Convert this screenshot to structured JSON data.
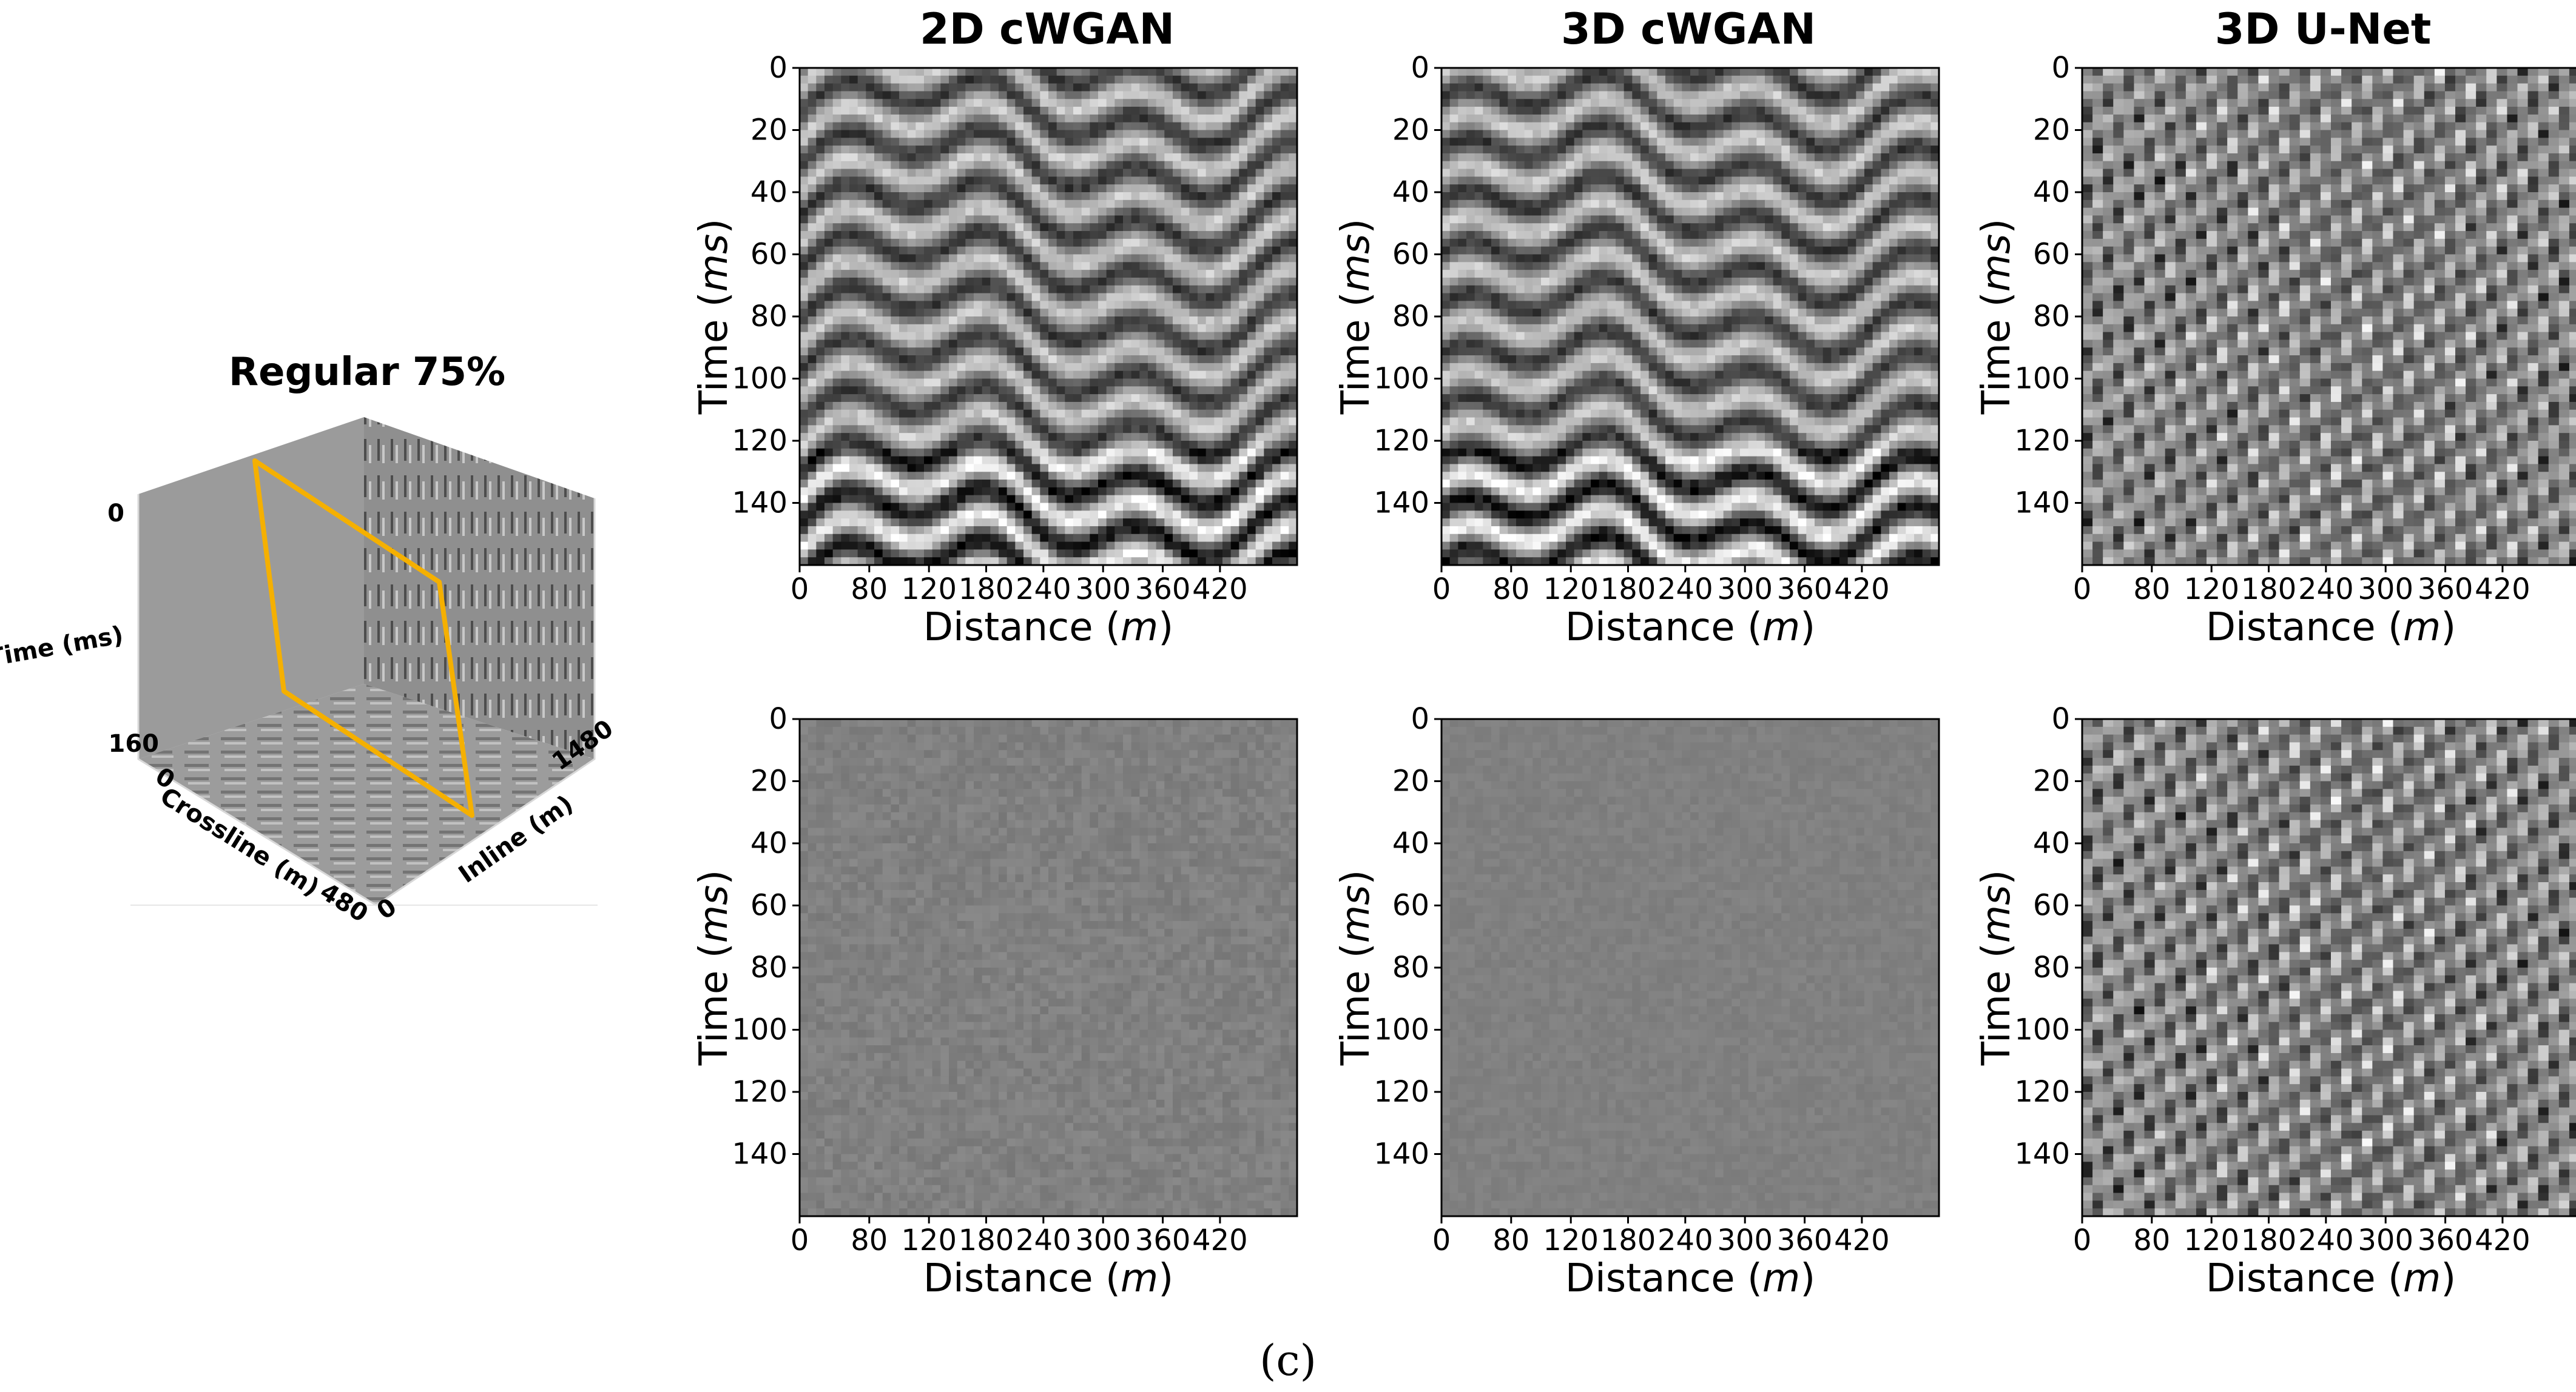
{
  "cube": {
    "title": "Regular 75%",
    "time_label": "Time (ms)",
    "time_top": "0",
    "time_bottom": "160",
    "crossline_label": "Crossline (m)",
    "crossline_start": "0",
    "crossline_end": "480",
    "inline_label": "Inline (m)",
    "inline_start": "0",
    "inline_end": "1480",
    "slice_color": "#f5b000"
  },
  "columns": [
    {
      "title": "2D cWGAN"
    },
    {
      "title": "3D cWGAN"
    },
    {
      "title": "3D U-Net"
    }
  ],
  "caption": "(c)",
  "chart_data": [
    {
      "type": "heatmap",
      "row": "top",
      "column": "2D cWGAN",
      "xlabel": "Distance (m)",
      "ylabel": "Time (ms)",
      "xticks": [
        "0",
        "80",
        "120",
        "180",
        "240",
        "300",
        "360",
        "420"
      ],
      "yticks": [
        "0",
        "20",
        "40",
        "60",
        "80",
        "100",
        "120",
        "140"
      ],
      "pattern": "reflectors",
      "contrast": 1.0
    },
    {
      "type": "heatmap",
      "row": "top",
      "column": "3D cWGAN",
      "xlabel": "Distance (m)",
      "ylabel": "Time (ms)",
      "xticks": [
        "0",
        "80",
        "120",
        "180",
        "240",
        "300",
        "360",
        "420"
      ],
      "yticks": [
        "0",
        "20",
        "40",
        "60",
        "80",
        "100",
        "120",
        "140"
      ],
      "pattern": "reflectors",
      "contrast": 1.0
    },
    {
      "type": "heatmap",
      "row": "top",
      "column": "3D U-Net",
      "xlabel": "Distance (m)",
      "ylabel": "Time (ms)",
      "xticks": [
        "0",
        "80",
        "120",
        "180",
        "240",
        "300",
        "360",
        "420"
      ],
      "yticks": [
        "0",
        "20",
        "40",
        "60",
        "80",
        "100",
        "120",
        "140"
      ],
      "pattern": "blobs",
      "contrast": 1.0
    },
    {
      "type": "heatmap",
      "row": "bottom",
      "column": "2D cWGAN",
      "xlabel": "Distance (m)",
      "ylabel": "Time (ms)",
      "xticks": [
        "0",
        "80",
        "120",
        "180",
        "240",
        "300",
        "360",
        "420"
      ],
      "yticks": [
        "0",
        "20",
        "40",
        "60",
        "80",
        "100",
        "120",
        "140"
      ],
      "pattern": "noise",
      "contrast": 0.25
    },
    {
      "type": "heatmap",
      "row": "bottom",
      "column": "3D cWGAN",
      "xlabel": "Distance (m)",
      "ylabel": "Time (ms)",
      "xticks": [
        "0",
        "80",
        "120",
        "180",
        "240",
        "300",
        "360",
        "420"
      ],
      "yticks": [
        "0",
        "20",
        "40",
        "60",
        "80",
        "100",
        "120",
        "140"
      ],
      "pattern": "noise",
      "contrast": 0.15
    },
    {
      "type": "heatmap",
      "row": "bottom",
      "column": "3D U-Net",
      "xlabel": "Distance (m)",
      "ylabel": "Time (ms)",
      "xticks": [
        "0",
        "80",
        "120",
        "180",
        "240",
        "300",
        "360",
        "420"
      ],
      "yticks": [
        "0",
        "20",
        "40",
        "60",
        "80",
        "100",
        "120",
        "140"
      ],
      "pattern": "blobs",
      "contrast": 1.0
    }
  ]
}
